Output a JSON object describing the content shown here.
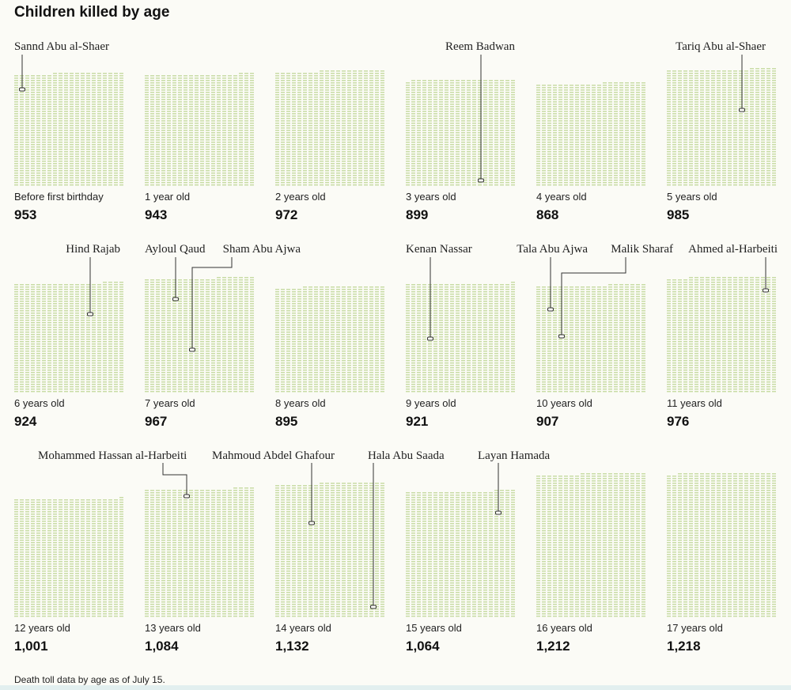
{
  "title": "Children killed by age",
  "footnote": "Death toll data by age as of July 15.",
  "colors": {
    "dash": "#c9dca6",
    "leader": "#333333",
    "background": "#fbfbf6"
  },
  "chart_data": {
    "type": "waffle",
    "unit": "children killed",
    "categories": [
      "Before first birthday",
      "1 year old",
      "2 years old",
      "3 years old",
      "4 years old",
      "5 years old",
      "6 years old",
      "7 years old",
      "8 years old",
      "9 years old",
      "10 years old",
      "11 years old",
      "12 years old",
      "13 years old",
      "14 years old",
      "15 years old",
      "16 years old",
      "17 years old"
    ],
    "values": [
      953,
      943,
      972,
      899,
      868,
      985,
      924,
      967,
      895,
      921,
      907,
      976,
      1001,
      1084,
      1132,
      1064,
      1212,
      1218
    ],
    "value_labels": [
      "953",
      "943",
      "972",
      "899",
      "868",
      "985",
      "924",
      "967",
      "895",
      "921",
      "907",
      "976",
      "1,001",
      "1,084",
      "1,132",
      "1,064",
      "1,212",
      "1,218"
    ],
    "annotations": [
      {
        "name": "Sannd Abu al-Shaer",
        "age_index": 0
      },
      {
        "name": "Reem Badwan",
        "age_index": 3
      },
      {
        "name": "Tariq Abu al-Shaer",
        "age_index": 5
      },
      {
        "name": "Hind Rajab",
        "age_index": 6
      },
      {
        "name": "Ayloul Qaud",
        "age_index": 7
      },
      {
        "name": "Sham Abu Ajwa",
        "age_index": 7
      },
      {
        "name": "Kenan Nassar",
        "age_index": 9
      },
      {
        "name": "Tala Abu Ajwa",
        "age_index": 10
      },
      {
        "name": "Malik Sharaf",
        "age_index": 10
      },
      {
        "name": "Ahmed al-Harbeiti",
        "age_index": 11
      },
      {
        "name": "Mohammed Hassan al-Harbeiti",
        "age_index": 13
      },
      {
        "name": "Mahmoud Abdel Ghafour",
        "age_index": 14
      },
      {
        "name": "Hala Abu Saada",
        "age_index": 14
      },
      {
        "name": "Layan Hamada",
        "age_index": 15
      }
    ]
  }
}
